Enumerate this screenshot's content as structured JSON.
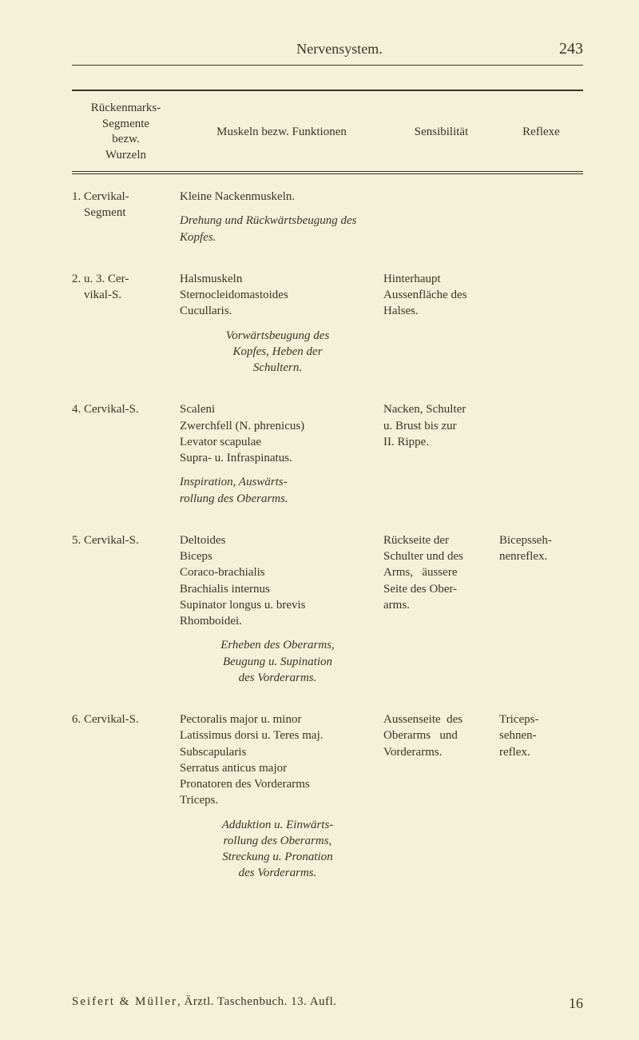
{
  "header": {
    "title": "Nervensystem.",
    "page_number": "243"
  },
  "table_headers": {
    "col1": "Rückenmarks-\nSegmente\nbezw.\nWurzeln",
    "col2": "Muskeln bezw. Funktionen",
    "col3": "Sensibilität",
    "col4": "Reflexe"
  },
  "rows": [
    {
      "label": "1. Cervikal-Segment",
      "muscles": "Kleine Nackenmuskeln.",
      "movement": "Drehung und Rückwärtsbeugung des Kopfes.",
      "sensibility": "",
      "reflexes": ""
    },
    {
      "label": "2. u. 3. Cervikal-S.",
      "muscles": "Halsmuskeln\nSternocleidomastoides\nCucullaris.",
      "movement": "Vorwärtsbeugung des Kopfes, Heben der Schultern.",
      "sensibility": "Hinterhaupt\nAussenfläche des Halses.",
      "reflexes": ""
    },
    {
      "label": "4. Cervikal-S.",
      "muscles": "Scaleni\nZwerchfell (N. phrenicus)\nLevator scapulae\nSupra- u. Infraspinatus.",
      "movement": "Inspiration, Auswärtsrollung des Oberarms.",
      "sensibility": "Nacken, Schulter u. Brust bis zur II. Rippe.",
      "reflexes": ""
    },
    {
      "label": "5. Cervikal-S.",
      "muscles": "Deltoides\nBiceps\nCoraco-brachialis\nBrachialis internus\nSupinator longus u. brevis\nRhomboidei.",
      "movement": "Erheben des Oberarms, Beugung u. Supination des Vorderarms.",
      "sensibility": "Rückseite der Schulter und des Arms, äussere Seite des Oberarms.",
      "reflexes": "Bicepssehnenreflex."
    },
    {
      "label": "6. Cervikal-S.",
      "muscles": "Pectoralis major u. minor\nLatissimus dorsi u. Teres maj.\nSubscapularis\nSerratus anticus major\nPronatoren des Vorderarms\nTriceps.",
      "movement": "Adduktion u. Einwärtsrollung des Oberarms, Streckung u. Pronation des Vorderarms.",
      "sensibility": "Aussenseite des Oberarms und Vorderarms.",
      "reflexes": "Triceps-sehnen-reflex."
    }
  ],
  "footer": {
    "authors": "Seifert & Müller",
    "text": ", Ärztl. Taschenbuch. 13. Aufl.",
    "page_ref": "16"
  }
}
